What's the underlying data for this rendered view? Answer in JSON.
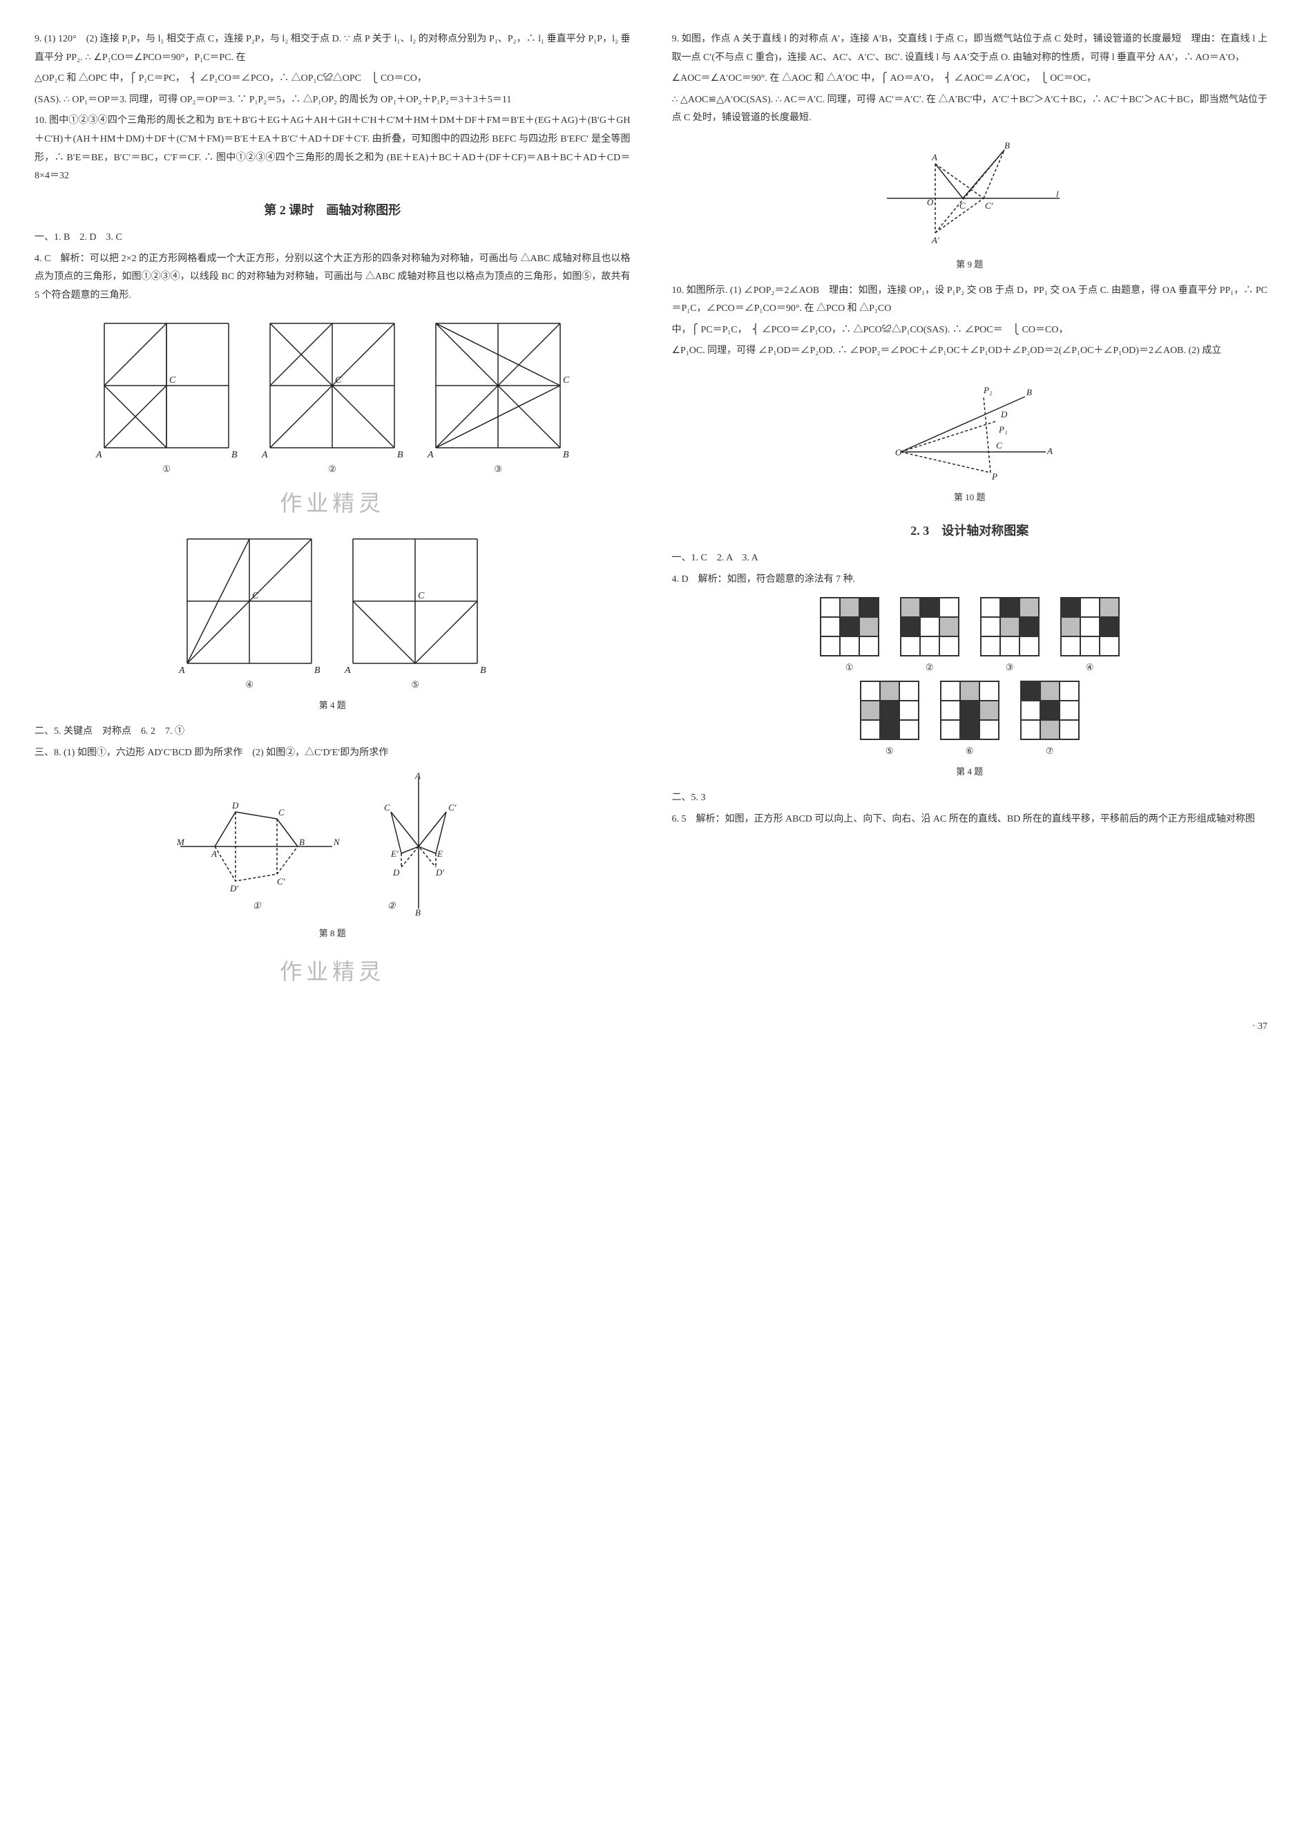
{
  "left": {
    "p9": "9. (1) 120°　(2) 连接 P₁P，与 l₁ 相交于点 C，连接 P₂P，与 l₂ 相交于点 D. ∵ 点 P 关于 l₁、l₂ 的对称点分别为 P₁、P₂，∴ l₁ 垂直平分 P₁P，l₂ 垂直平分 PP₂. ∴ ∠P₁CO＝∠PCO＝90°，P₁C＝PC. 在",
    "p9b": "△OP₁C 和 △OPC 中，⎧ P₁C＝PC，　⎨ ∠P₁CO＝∠PCO，∴ △OP₁C≌△OPC　⎩ CO＝CO，",
    "p9c": "(SAS). ∴ OP₁＝OP＝3. 同理，可得 OP₂＝OP＝3. ∵ P₁P₂＝5，∴ △P₁OP₂ 的周长为 OP₁＋OP₂＋P₁P₂＝3＋3＋5＝11",
    "p10": "10. 图中①②③④四个三角形的周长之和为 B′E＋B′G＋EG＋AG＋AH＋GH＋C′H＋C′M＋HM＋DM＋DF＋FM＝B′E＋(EG＋AG)＋(B′G＋GH＋C′H)＋(AH＋HM＋DM)＋DF＋(C′M＋FM)＝B′E＋EA＋B′C′＋AD＋DF＋C′F. 由折叠，可知图中的四边形 BEFC 与四边形 B′EFC′ 是全等图形，∴ B′E＝BE，B′C′＝BC，C′F＝CF. ∴ 图中①②③④四个三角形的周长之和为 (BE＋EA)＋BC＋AD＋(DF＋CF)＝AB＋BC＋AD＋CD＝8×4＝32",
    "sec2_title": "第 2 课时　画轴对称图形",
    "sec2_a": "一、1. B　2. D　3. C",
    "sec2_4": "4. C　解析：可以把 2×2 的正方形网格看成一个大正方形，分别以这个大正方形的四条对称轴为对称轴，可画出与 △ABC 成轴对称且也以格点为顶点的三角形，如图①②③④，以线段 BC 的对称轴为对称轴，可画出与 △ABC 成轴对称且也以格点为顶点的三角形，如图⑤，故共有 5 个符合题意的三角形.",
    "fig4_cap": "第 4 题",
    "sec2_b": "二、5. 关键点　对称点　6. 2　7. ①",
    "sec2_c": "三、8. (1) 如图①，六边形 AD′C′BCD 即为所求作　(2) 如图②，△C′D′E′即为所求作",
    "fig8_cap": "第 8 题",
    "wm1": "作业精灵",
    "wm2": "作业精灵"
  },
  "right": {
    "p9": "9. 如图，作点 A 关于直线 l 的对称点 A′，连接 A′B，交直线 l 于点 C，即当燃气站位于点 C 处时，铺设管道的长度最短　理由：在直线 l 上取一点 C′(不与点 C 重合)，连接 AC、AC′、A′C′、BC′. 设直线 l 与 AA′交于点 O. 由轴对称的性质，可得 l 垂直平分 AA′，∴ AO＝A′O，",
    "p9b": "∠AOC＝∠A′OC＝90°. 在 △AOC 和 △A′OC 中，⎧ AO＝A′O，　⎨ ∠AOC＝∠A′OC，　⎩ OC＝OC，",
    "p9c": "∴ △AOC≌△A′OC(SAS). ∴ AC＝A′C. 同理，可得 AC′＝A′C′. 在 △A′BC′中，A′C′＋BC′＞A′C＋BC，∴ AC′＋BC′＞AC＋BC，即当燃气站位于点 C 处时，铺设管道的长度最短.",
    "fig9_cap": "第 9 题",
    "p10": "10. 如图所示. (1) ∠POP₂＝2∠AOB　理由：如图，连接 OP₁，设 P₁P₂ 交 OB 于点 D，PP₁ 交 OA 于点 C. 由题意，得 OA 垂直平分 PP₁，∴ PC＝P₁C，∠PCO＝∠P₁CO＝90°. 在 △PCO 和 △P₁CO",
    "p10b": "中，⎧ PC＝P₁C，　⎨ ∠PCO＝∠P₁CO，∴ △PCO≌△P₁CO(SAS). ∴ ∠POC＝　⎩ CO＝CO，",
    "p10c": "∠P₁OC. 同理，可得 ∠P₁OD＝∠P₂OD. ∴ ∠POP₂＝∠POC＋∠P₁OC＋∠P₁OD＋∠P₂OD＝2(∠P₁OC＋∠P₁OD)＝2∠AOB. (2) 成立",
    "fig10_cap": "第 10 题",
    "sec23_title": "2. 3　设计轴对称图案",
    "sec23_a": "一、1. C　2. A　3. A",
    "sec23_4": "4. D　解析：如图，符合题意的涂法有 7 种.",
    "fig4_cap": "第 4 题",
    "sec23_b": "二、5. 3",
    "sec23_6": "6. 5　解析：如图，正方形 ABCD 可以向上、向下、向右、沿 AC 所在的直线、BD 所在的直线平移，平移前后的两个正方形组成轴对称图",
    "pagenum": "· 37"
  },
  "fig4_grids": {
    "labels": [
      "①",
      "②",
      "③",
      "④",
      "⑤"
    ],
    "grids": [
      {
        "w": 2,
        "h": 2,
        "lines": [
          [
            0,
            1,
            1,
            0
          ],
          [
            0,
            1,
            1,
            2
          ],
          [
            0,
            2,
            1,
            1
          ],
          [
            1,
            2,
            1,
            0
          ],
          [
            0,
            0,
            0,
            2
          ],
          [
            0,
            0,
            2,
            0
          ],
          [
            0,
            2,
            2,
            2
          ],
          [
            2,
            0,
            2,
            2
          ],
          [
            1,
            0,
            1,
            2
          ],
          [
            0,
            1,
            2,
            1
          ]
        ],
        "labels": [
          [
            "A",
            0,
            2,
            "br"
          ],
          [
            "B",
            2,
            2,
            "bl"
          ],
          [
            "C",
            1,
            1,
            "tl"
          ]
        ]
      },
      {
        "w": 2,
        "h": 2,
        "lines": [
          [
            0,
            0,
            2,
            2
          ],
          [
            0,
            2,
            2,
            0
          ],
          [
            0,
            1,
            1,
            0
          ],
          [
            0,
            0,
            0,
            2
          ],
          [
            0,
            0,
            2,
            0
          ],
          [
            0,
            2,
            2,
            2
          ],
          [
            2,
            0,
            2,
            2
          ],
          [
            1,
            0,
            1,
            2
          ],
          [
            0,
            1,
            2,
            1
          ]
        ],
        "labels": [
          [
            "A",
            0,
            2,
            "br"
          ],
          [
            "B",
            2,
            2,
            "bl"
          ],
          [
            "C",
            1,
            1,
            "tl"
          ]
        ]
      },
      {
        "w": 2,
        "h": 2,
        "lines": [
          [
            0,
            0,
            2,
            1
          ],
          [
            0,
            2,
            2,
            1
          ],
          [
            0,
            0,
            1,
            1
          ],
          [
            1,
            1,
            2,
            0
          ],
          [
            0,
            2,
            1,
            1
          ],
          [
            1,
            1,
            2,
            2
          ],
          [
            0,
            0,
            0,
            2
          ],
          [
            0,
            0,
            2,
            0
          ],
          [
            0,
            2,
            2,
            2
          ],
          [
            2,
            0,
            2,
            2
          ],
          [
            1,
            0,
            1,
            2
          ],
          [
            0,
            1,
            2,
            1
          ]
        ],
        "labels": [
          [
            "A",
            0,
            2,
            "br"
          ],
          [
            "B",
            2,
            2,
            "bl"
          ],
          [
            "C",
            2,
            1,
            "tl"
          ]
        ]
      },
      {
        "w": 2,
        "h": 2,
        "lines": [
          [
            0,
            2,
            1,
            0
          ],
          [
            0,
            2,
            2,
            0
          ],
          [
            0,
            2,
            2,
            2
          ],
          [
            0,
            0,
            0,
            2
          ],
          [
            0,
            0,
            2,
            0
          ],
          [
            2,
            0,
            2,
            2
          ],
          [
            1,
            0,
            1,
            2
          ],
          [
            0,
            1,
            2,
            1
          ]
        ],
        "labels": [
          [
            "A",
            0,
            2,
            "br"
          ],
          [
            "B",
            2,
            2,
            "bl"
          ],
          [
            "C",
            1,
            1,
            "tl"
          ]
        ]
      },
      {
        "w": 2,
        "h": 2,
        "lines": [
          [
            0,
            1,
            1,
            2
          ],
          [
            1,
            2,
            2,
            1
          ],
          [
            0,
            1,
            2,
            1
          ],
          [
            0,
            0,
            0,
            2
          ],
          [
            0,
            0,
            2,
            0
          ],
          [
            0,
            2,
            2,
            2
          ],
          [
            2,
            0,
            2,
            2
          ],
          [
            1,
            0,
            1,
            2
          ]
        ],
        "labels": [
          [
            "A",
            0,
            2,
            "br"
          ],
          [
            "B",
            2,
            2,
            "bl"
          ],
          [
            "C",
            1,
            1,
            "tl"
          ]
        ]
      }
    ],
    "cell": 90
  },
  "colors": {
    "text": "#333333",
    "line": "#222222",
    "wm": "#bbbbbb",
    "grid_light": "#bdbdbd",
    "grid_dark": "#333333"
  },
  "minigrids": {
    "labels": [
      "①",
      "②",
      "③",
      "④",
      "⑤",
      "⑥",
      "⑦"
    ],
    "grids": [
      [
        [
          0,
          1,
          2
        ],
        [
          0,
          2,
          1
        ],
        [
          0,
          0,
          0
        ]
      ],
      [
        [
          1,
          2,
          0
        ],
        [
          2,
          0,
          1
        ],
        [
          0,
          0,
          0
        ]
      ],
      [
        [
          0,
          2,
          1
        ],
        [
          0,
          1,
          2
        ],
        [
          0,
          0,
          0
        ]
      ],
      [
        [
          2,
          0,
          1
        ],
        [
          1,
          0,
          2
        ],
        [
          0,
          0,
          0
        ]
      ],
      [
        [
          0,
          1,
          0
        ],
        [
          1,
          2,
          0
        ],
        [
          0,
          2,
          0
        ]
      ],
      [
        [
          0,
          1,
          0
        ],
        [
          0,
          2,
          1
        ],
        [
          0,
          2,
          0
        ]
      ],
      [
        [
          2,
          1,
          0
        ],
        [
          0,
          2,
          0
        ],
        [
          0,
          1,
          0
        ]
      ]
    ]
  }
}
